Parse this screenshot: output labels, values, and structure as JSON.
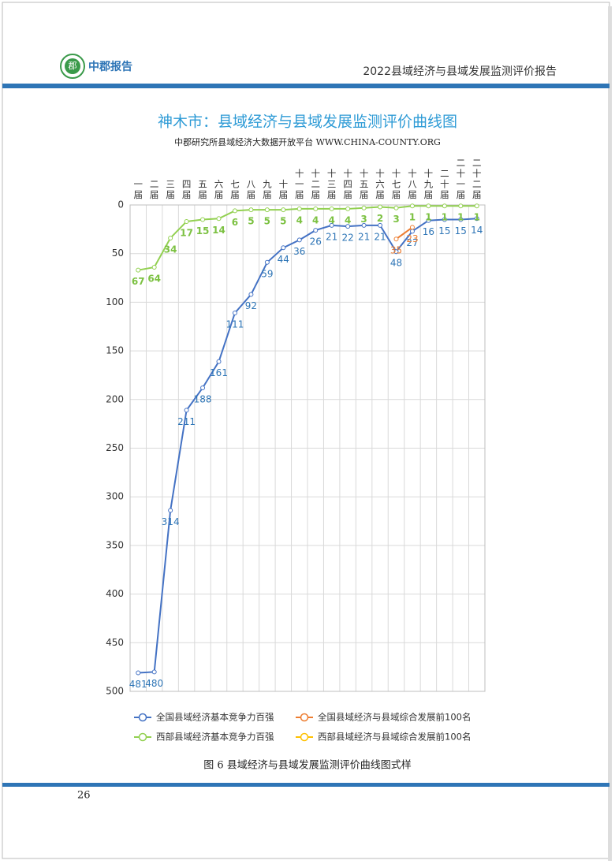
{
  "header": {
    "logo_char": "郡",
    "brand": "中郡报告",
    "report_title": "2022县域经济与县域发展监测评价报告"
  },
  "chart_data": {
    "type": "line",
    "title": "神木市：县域经济与县域发展监测评价曲线图",
    "subtitle": "中郡研究所县域经济大数据开放平台 WWW.CHINA-COUNTY.ORG",
    "categories": [
      "一届",
      "二届",
      "三届",
      "四届",
      "五届",
      "六届",
      "七届",
      "八届",
      "九届",
      "十届",
      "十一届",
      "十二届",
      "十三届",
      "十四届",
      "十五届",
      "十六届",
      "十七届",
      "十八届",
      "十九届",
      "二十届",
      "二十一届",
      "二十二届"
    ],
    "ylim": [
      0,
      500
    ],
    "yticks": [
      0,
      50,
      100,
      150,
      200,
      250,
      300,
      350,
      400,
      450,
      500
    ],
    "y_inverted": true,
    "grid": true,
    "legend": "bottom",
    "series": [
      {
        "name": "全国县域经济基本竞争力百强",
        "color": "#4472c4",
        "label_color": "#2e75b6",
        "values": [
          481,
          480,
          314,
          211,
          188,
          161,
          111,
          92,
          59,
          44,
          36,
          26,
          21,
          22,
          21,
          21,
          48,
          27,
          16,
          15,
          15,
          14
        ]
      },
      {
        "name": "全国县域经济与县域综合发展前100名",
        "color": "#ed7d31",
        "label_color": "#ed7d31",
        "values": [
          null,
          null,
          null,
          null,
          null,
          null,
          null,
          null,
          null,
          null,
          null,
          null,
          null,
          null,
          null,
          null,
          35,
          23,
          null,
          null,
          null,
          null
        ]
      },
      {
        "name": "西部县域经济基本竞争力百强",
        "color": "#92d050",
        "label_color": "#7cc142",
        "values": [
          67,
          64,
          34,
          17,
          15,
          14,
          6,
          5,
          5,
          5,
          4,
          4,
          4,
          4,
          3,
          2,
          3,
          1,
          1,
          1,
          1,
          1
        ]
      },
      {
        "name": "西部县域经济与县域综合发展前100名",
        "color": "#ffc000",
        "label_color": "#ffc000",
        "values": [
          null,
          null,
          null,
          null,
          null,
          null,
          null,
          null,
          null,
          null,
          null,
          null,
          null,
          null,
          null,
          null,
          null,
          null,
          null,
          null,
          null,
          null
        ]
      }
    ]
  },
  "caption": "图 6 县域经济与县域发展监测评价曲线图式样",
  "page_number": "26"
}
